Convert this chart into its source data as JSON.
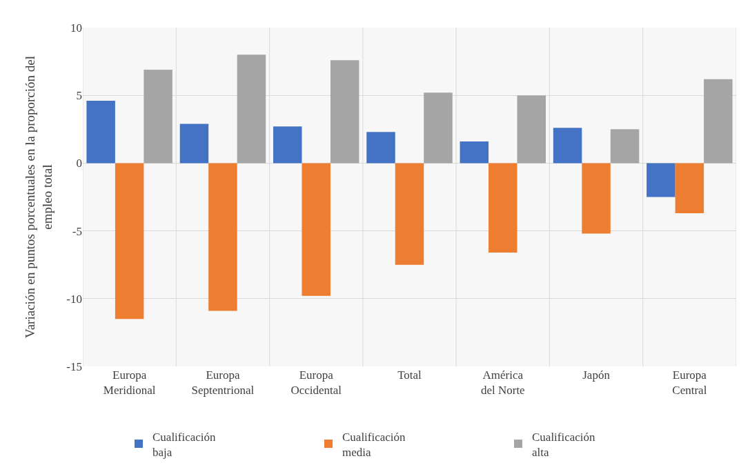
{
  "chart_data": {
    "type": "bar",
    "ylabel": "Variación en puntos porcentuales en la proporción del empleo total",
    "categories": [
      "Europa Meridional",
      "Europa Septentrional",
      "Europa Occidental",
      "Total",
      "América del Norte",
      "Japón",
      "Europa Central"
    ],
    "series": [
      {
        "name": "Cualificación baja",
        "color": "#4472c4",
        "values": [
          4.6,
          2.9,
          2.7,
          2.3,
          1.6,
          2.6,
          -2.5
        ]
      },
      {
        "name": "Cualificación media",
        "color": "#ed7d31",
        "values": [
          -11.5,
          -10.9,
          -9.8,
          -7.5,
          -6.6,
          -5.2,
          -3.7
        ]
      },
      {
        "name": "Cualificación alta",
        "color": "#a5a5a5",
        "values": [
          6.9,
          8.0,
          7.6,
          5.2,
          5.0,
          2.5,
          6.2
        ]
      }
    ],
    "ylim": [
      -15,
      10
    ],
    "yticks": [
      -15,
      -10,
      -5,
      0,
      5,
      10
    ],
    "grid": true,
    "legend": "bottom"
  }
}
